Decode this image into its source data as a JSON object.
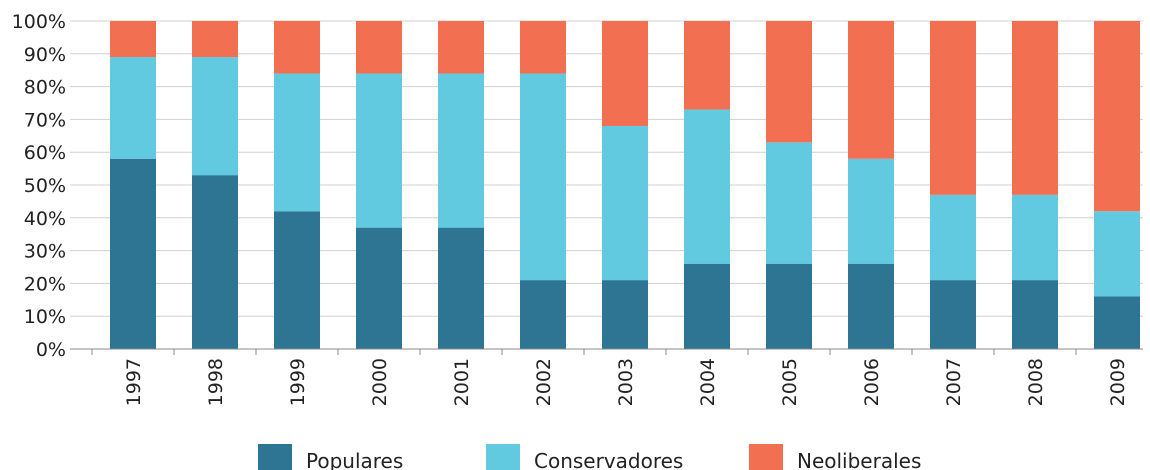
{
  "chart_data": {
    "type": "bar",
    "stacked": true,
    "categories": [
      "1997",
      "1998",
      "1999",
      "2000",
      "2001",
      "2002",
      "2003",
      "2004",
      "2005",
      "2006",
      "2007",
      "2008",
      "2009"
    ],
    "series": [
      {
        "name": "Populares",
        "color": "#2e7594",
        "values": [
          58,
          53,
          42,
          37,
          37,
          21,
          21,
          26,
          26,
          26,
          21,
          21,
          16
        ]
      },
      {
        "name": "Conservadores",
        "color": "#61cae1",
        "values": [
          31,
          36,
          42,
          47,
          47,
          63,
          47,
          47,
          37,
          32,
          26,
          26,
          26
        ]
      },
      {
        "name": "Neoliberales",
        "color": "#f26f52",
        "values": [
          11,
          11,
          16,
          16,
          16,
          16,
          32,
          27,
          37,
          42,
          53,
          53,
          58
        ]
      }
    ],
    "y_ticks": [
      "0%",
      "10%",
      "20%",
      "30%",
      "40%",
      "50%",
      "60%",
      "70%",
      "80%",
      "90%",
      "100%"
    ],
    "ylim": [
      0,
      100
    ],
    "grid": true,
    "legend_position": "bottom",
    "title": "",
    "xlabel": "",
    "ylabel": ""
  }
}
